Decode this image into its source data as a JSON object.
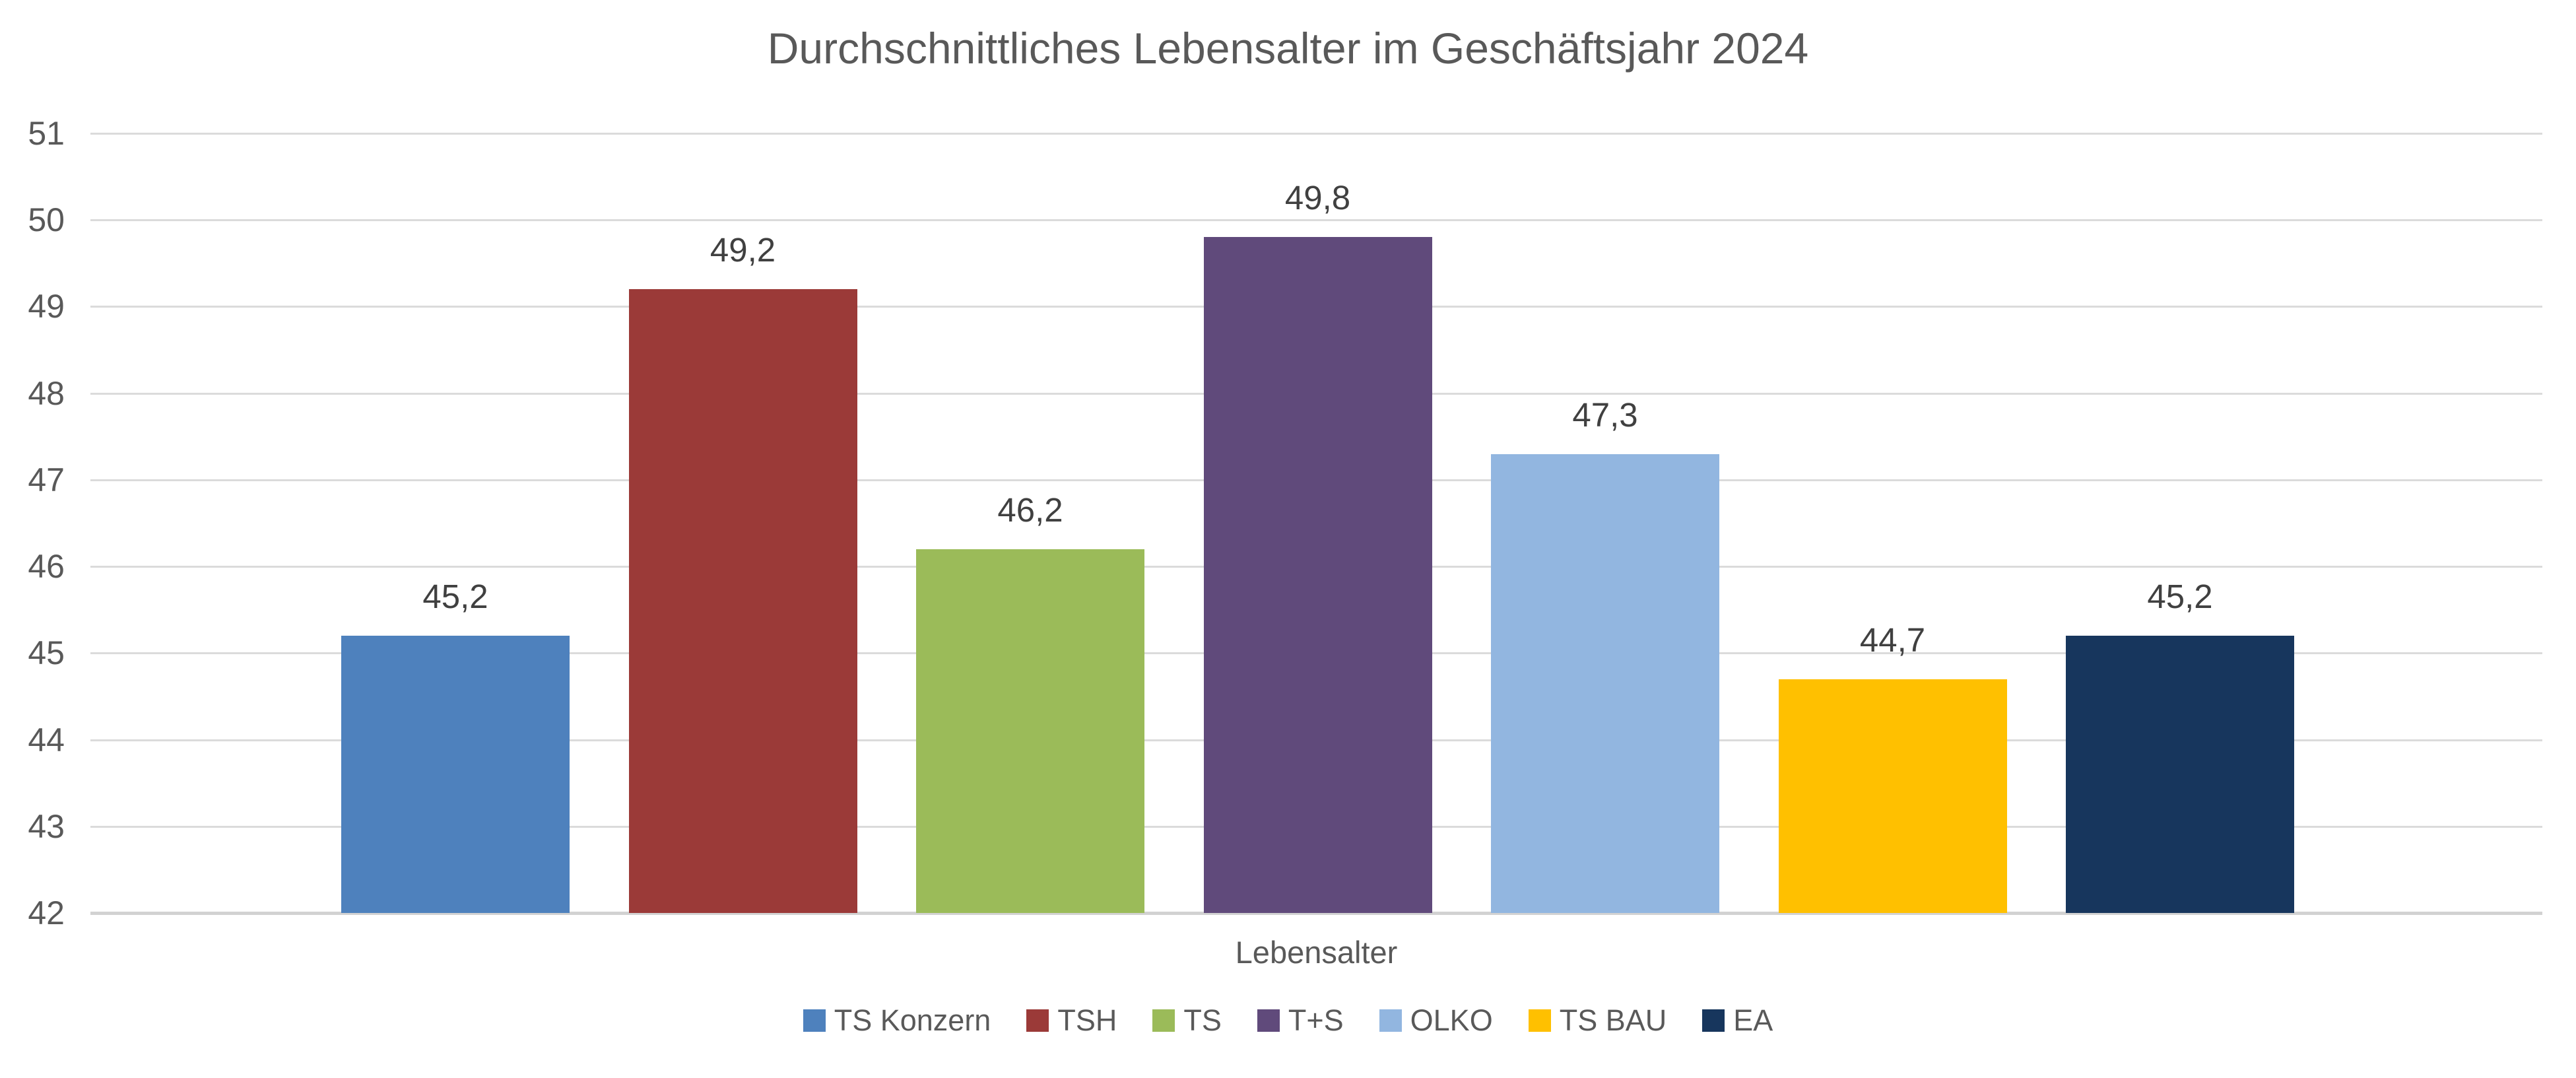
{
  "chart_data": {
    "type": "bar",
    "title": "Durchschnittliches Lebensalter im Geschäftsjahr 2024",
    "xlabel": "Lebensalter",
    "ylabel": "",
    "ylim": [
      42,
      51
    ],
    "ytick_step": 1,
    "yticks": [
      42,
      43,
      44,
      45,
      46,
      47,
      48,
      49,
      50,
      51
    ],
    "grid": true,
    "legend_position": "bottom",
    "categories": [
      "TS Konzern",
      "TSH",
      "TS",
      "T+S",
      "OLKO",
      "TS BAU",
      "EA"
    ],
    "values": [
      45.2,
      49.2,
      46.2,
      49.8,
      47.3,
      44.7,
      45.2
    ],
    "value_labels": [
      "45,2",
      "49,2",
      "46,2",
      "49,8",
      "47,3",
      "44,7",
      "45,2"
    ],
    "bar_colors": [
      "#4E81BD",
      "#9B3A38",
      "#9BBB59",
      "#604A7B",
      "#92B6E0",
      "#FFC000",
      "#17365D"
    ]
  },
  "colors": {
    "title_text": "#595959",
    "axis_text": "#595959",
    "data_label_text": "#404040",
    "gridline": "#DBDBDB",
    "axis_line": "#D2D2D2",
    "background": "#FFFFFF"
  }
}
